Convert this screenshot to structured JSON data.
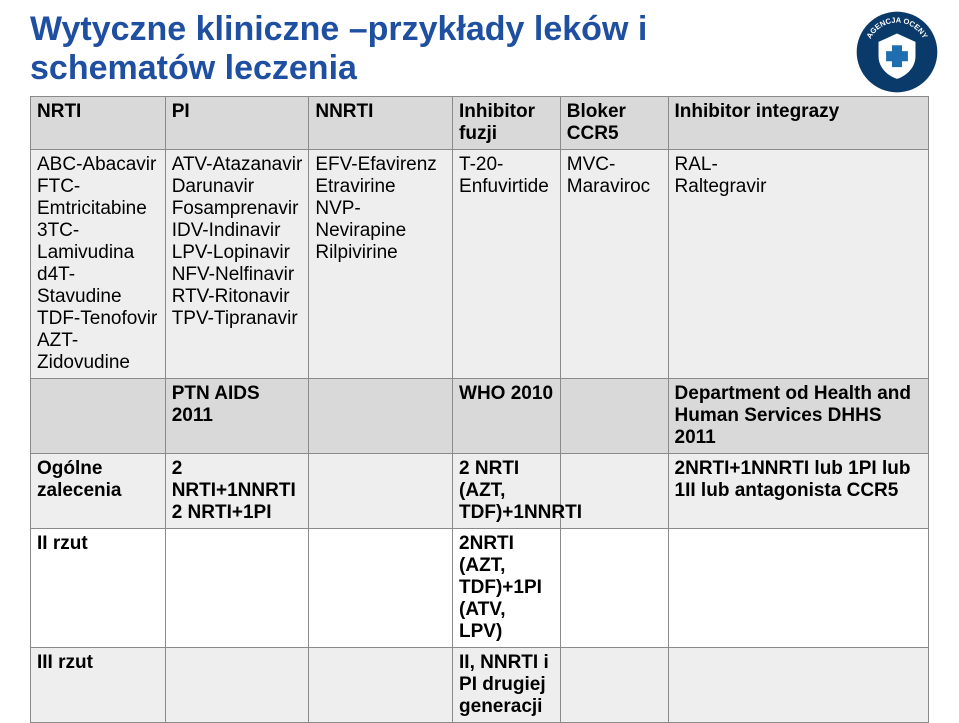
{
  "title_color": "#1f4fa0",
  "title_line1": "Wytyczne kliniczne –przykłady leków i",
  "title_line2": "schematów leczenia",
  "logo_text_top": "AGENCJA OCENY",
  "logo_bg": "#0a3a6a",
  "border_color": "#8a8a8a",
  "header_bg": "#d9d9d9",
  "alt_row_bg": "#eeeeee",
  "col_widths": [
    "15%",
    "16%",
    "16%",
    "12%",
    "12%",
    "29%"
  ],
  "headers": [
    "NRTI",
    "PI",
    "NNRTI",
    "Inhibitor fuzji",
    "Bloker CCR5",
    "Inhibitor integrazy"
  ],
  "row1": [
    "ABC-Abacavir\nFTC-Emtricitabine\n3TC-Lamivudina\nd4T-Stavudine\nTDF-Tenofovir\nAZT-Zidovudine",
    "ATV-Atazanavir\nDarunavir\nFosamprenavir\nIDV-Indinavir\nLPV-Lopinavir\nNFV-Nelfinavir\nRTV-Ritonavir\nTPV-Tipranavir",
    "EFV-Efavirenz\nEtravirine\nNVP-Nevirapine\nRilpivirine",
    "T-20-\nEnfuvirtide",
    "MVC-\nMaraviroc",
    "RAL-\nRaltegravir"
  ],
  "row2": [
    "",
    "PTN AIDS 2011",
    "",
    "WHO 2010",
    "",
    "Department od Health and Human Services DHHS 2011"
  ],
  "row3": [
    "Ogólne zalecenia",
    "2 NRTI+1NNRTI\n2 NRTI+1PI",
    "",
    "2 NRTI (AZT, TDF)+1NNRTI",
    "",
    "2NRTI+1NNRTI lub 1PI lub 1II lub antagonista CCR5"
  ],
  "row4": [
    "II rzut",
    "",
    "",
    "2NRTI (AZT, TDF)+1PI (ATV, LPV)",
    "",
    ""
  ],
  "row5": [
    "III rzut",
    "",
    "",
    "II, NNRTI i PI drugiej generacji",
    "",
    ""
  ]
}
